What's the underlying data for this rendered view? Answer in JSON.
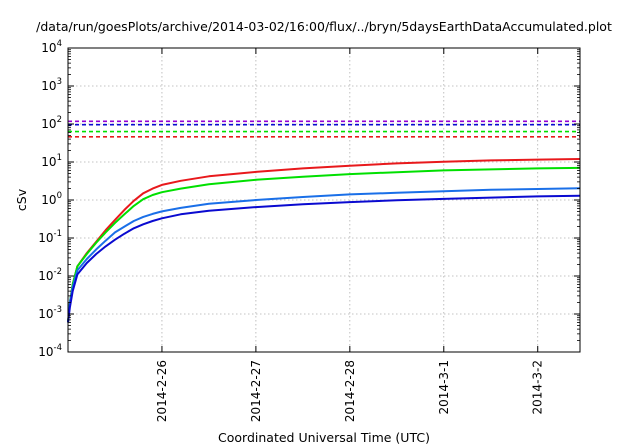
{
  "chart_data": {
    "type": "line",
    "title": "/data/run/goesPlots/archive/2014-03-02/16:00/flux/../bryn/5daysEarthDataAccumulated.plot",
    "xlabel": "Coordinated Universal Time (UTC)",
    "ylabel": "cSv",
    "yscale": "log",
    "ylim": [
      0.0001,
      10000
    ],
    "xlim": [
      0,
      5.45
    ],
    "grid": true,
    "legend": "none",
    "x_ticks": [
      {
        "label": "2014-2-26",
        "x": 1
      },
      {
        "label": "2014-2-27",
        "x": 2
      },
      {
        "label": "2014-2-28",
        "x": 3
      },
      {
        "label": "2014-3-1",
        "x": 4
      },
      {
        "label": "2014-3-2",
        "x": 5
      }
    ],
    "y_ticks": [
      {
        "base": "10",
        "exp": "-4",
        "value": 0.0001
      },
      {
        "base": "10",
        "exp": "-3",
        "value": 0.001
      },
      {
        "base": "10",
        "exp": "-2",
        "value": 0.01
      },
      {
        "base": "10",
        "exp": "-1",
        "value": 0.1
      },
      {
        "base": "10",
        "exp": "0",
        "value": 1
      },
      {
        "base": "10",
        "exp": "1",
        "value": 10
      },
      {
        "base": "10",
        "exp": "2",
        "value": 100
      },
      {
        "base": "10",
        "exp": "3",
        "value": 1000
      },
      {
        "base": "10",
        "exp": "4",
        "value": 10000
      }
    ],
    "series": [
      {
        "color": "#e8191c",
        "dash": false,
        "points": [
          [
            0,
            0.0006
          ],
          [
            0.02,
            0.002
          ],
          [
            0.05,
            0.006
          ],
          [
            0.1,
            0.018
          ],
          [
            0.2,
            0.04
          ],
          [
            0.3,
            0.08
          ],
          [
            0.4,
            0.16
          ],
          [
            0.5,
            0.3
          ],
          [
            0.6,
            0.55
          ],
          [
            0.7,
            0.95
          ],
          [
            0.8,
            1.5
          ],
          [
            0.9,
            2.0
          ],
          [
            1.0,
            2.5
          ],
          [
            1.2,
            3.2
          ],
          [
            1.5,
            4.2
          ],
          [
            2.0,
            5.5
          ],
          [
            2.5,
            6.8
          ],
          [
            3.0,
            8.0
          ],
          [
            3.5,
            9.2
          ],
          [
            4.0,
            10.2
          ],
          [
            4.5,
            11.0
          ],
          [
            5.0,
            11.6
          ],
          [
            5.45,
            12.0
          ]
        ]
      },
      {
        "color": "#00e000",
        "dash": false,
        "points": [
          [
            0,
            0.0006
          ],
          [
            0.02,
            0.002
          ],
          [
            0.05,
            0.006
          ],
          [
            0.1,
            0.018
          ],
          [
            0.2,
            0.038
          ],
          [
            0.3,
            0.075
          ],
          [
            0.4,
            0.14
          ],
          [
            0.5,
            0.25
          ],
          [
            0.6,
            0.42
          ],
          [
            0.7,
            0.7
          ],
          [
            0.8,
            1.05
          ],
          [
            0.9,
            1.35
          ],
          [
            1.0,
            1.6
          ],
          [
            1.2,
            2.0
          ],
          [
            1.5,
            2.6
          ],
          [
            2.0,
            3.4
          ],
          [
            2.5,
            4.1
          ],
          [
            3.0,
            4.8
          ],
          [
            3.5,
            5.4
          ],
          [
            4.0,
            6.0
          ],
          [
            4.5,
            6.4
          ],
          [
            5.0,
            6.8
          ],
          [
            5.45,
            7.0
          ]
        ]
      },
      {
        "color": "#1a6fe8",
        "dash": false,
        "points": [
          [
            0,
            0.0006
          ],
          [
            0.02,
            0.002
          ],
          [
            0.05,
            0.005
          ],
          [
            0.1,
            0.014
          ],
          [
            0.2,
            0.028
          ],
          [
            0.3,
            0.05
          ],
          [
            0.4,
            0.085
          ],
          [
            0.5,
            0.14
          ],
          [
            0.6,
            0.2
          ],
          [
            0.7,
            0.28
          ],
          [
            0.8,
            0.36
          ],
          [
            0.9,
            0.43
          ],
          [
            1.0,
            0.5
          ],
          [
            1.2,
            0.62
          ],
          [
            1.5,
            0.8
          ],
          [
            2.0,
            1.0
          ],
          [
            2.5,
            1.2
          ],
          [
            3.0,
            1.4
          ],
          [
            3.5,
            1.55
          ],
          [
            4.0,
            1.7
          ],
          [
            4.5,
            1.85
          ],
          [
            5.0,
            1.95
          ],
          [
            5.45,
            2.05
          ]
        ]
      },
      {
        "color": "#0a0ad0",
        "dash": false,
        "points": [
          [
            0,
            0.0006
          ],
          [
            0.02,
            0.0015
          ],
          [
            0.05,
            0.004
          ],
          [
            0.1,
            0.011
          ],
          [
            0.2,
            0.022
          ],
          [
            0.3,
            0.038
          ],
          [
            0.4,
            0.06
          ],
          [
            0.5,
            0.09
          ],
          [
            0.6,
            0.13
          ],
          [
            0.7,
            0.18
          ],
          [
            0.8,
            0.23
          ],
          [
            0.9,
            0.28
          ],
          [
            1.0,
            0.33
          ],
          [
            1.2,
            0.42
          ],
          [
            1.5,
            0.52
          ],
          [
            2.0,
            0.65
          ],
          [
            2.5,
            0.77
          ],
          [
            3.0,
            0.88
          ],
          [
            3.5,
            0.98
          ],
          [
            4.0,
            1.07
          ],
          [
            4.5,
            1.16
          ],
          [
            5.0,
            1.24
          ],
          [
            5.45,
            1.3
          ]
        ]
      },
      {
        "color": "#9400d3",
        "dash": true,
        "points": [
          [
            0,
            118
          ],
          [
            5.45,
            118
          ]
        ]
      },
      {
        "color": "#0a0ad0",
        "dash": true,
        "points": [
          [
            0,
            96
          ],
          [
            5.45,
            96
          ]
        ]
      },
      {
        "color": "#00e000",
        "dash": true,
        "points": [
          [
            0,
            63
          ],
          [
            5.45,
            63
          ]
        ]
      },
      {
        "color": "#e8191c",
        "dash": true,
        "points": [
          [
            0,
            46
          ],
          [
            5.45,
            46
          ]
        ]
      }
    ]
  }
}
